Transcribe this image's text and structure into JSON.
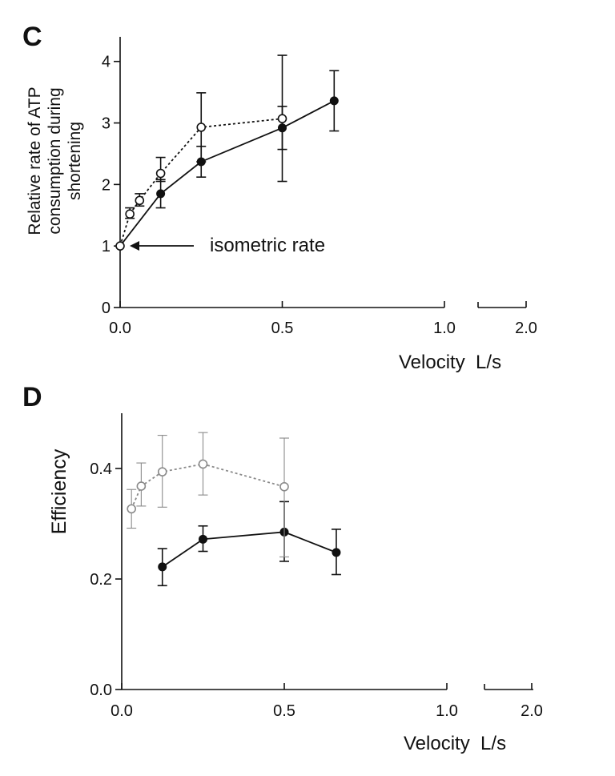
{
  "chart_data": [
    {
      "panel_label": "C",
      "type": "line",
      "ylabel_lines": [
        "Relative rate of ATP",
        "consumption during",
        "shortening"
      ],
      "xlabel": "Velocity  L/s",
      "x_ticks": [
        "0.0",
        "0.5",
        "1.0",
        "2.0"
      ],
      "y_ticks": [
        "0",
        "1",
        "2",
        "3",
        "4"
      ],
      "xlim": [
        0,
        1.0
      ],
      "ylim": [
        0,
        4.4
      ],
      "annotation": "isometric rate",
      "series": [
        {
          "style": "filled-solid",
          "x": [
            0,
            0.125,
            0.25,
            0.5,
            0.66
          ],
          "y": [
            1.0,
            1.85,
            2.37,
            2.92,
            3.36
          ],
          "err_low": [
            1.0,
            1.62,
            2.12,
            2.05,
            2.87
          ],
          "err_high": [
            1.0,
            2.08,
            2.62,
            3.27,
            3.85
          ]
        },
        {
          "style": "open-dashed",
          "x": [
            0,
            0.03,
            0.06,
            0.125,
            0.25,
            0.5
          ],
          "y": [
            1.0,
            1.52,
            1.74,
            2.18,
            2.93,
            3.07
          ],
          "err_low": [
            1.0,
            1.45,
            1.65,
            2.05,
            2.37,
            2.57
          ],
          "err_high": [
            1.0,
            1.62,
            1.85,
            2.44,
            3.49,
            4.1
          ]
        }
      ]
    },
    {
      "panel_label": "D",
      "type": "line",
      "ylabel": "Efficiency",
      "xlabel": "Velocity  L/s",
      "x_ticks": [
        "0.0",
        "0.5",
        "1.0",
        "2.0"
      ],
      "y_ticks": [
        "0.0",
        "0.2",
        "0.4"
      ],
      "xlim": [
        0,
        1.0
      ],
      "ylim": [
        0,
        0.5
      ],
      "series": [
        {
          "style": "filled-solid",
          "x": [
            0.125,
            0.25,
            0.5,
            0.66
          ],
          "y": [
            0.222,
            0.272,
            0.285,
            0.248
          ],
          "err_low": [
            0.188,
            0.25,
            0.232,
            0.208
          ],
          "err_high": [
            0.255,
            0.296,
            0.34,
            0.29
          ]
        },
        {
          "style": "open-dashed",
          "x": [
            0.03,
            0.06,
            0.125,
            0.25,
            0.5
          ],
          "y": [
            0.327,
            0.368,
            0.394,
            0.408,
            0.367
          ],
          "err_low": [
            0.292,
            0.332,
            0.33,
            0.352,
            0.24
          ],
          "err_high": [
            0.362,
            0.41,
            0.46,
            0.465,
            0.455
          ]
        }
      ]
    }
  ]
}
